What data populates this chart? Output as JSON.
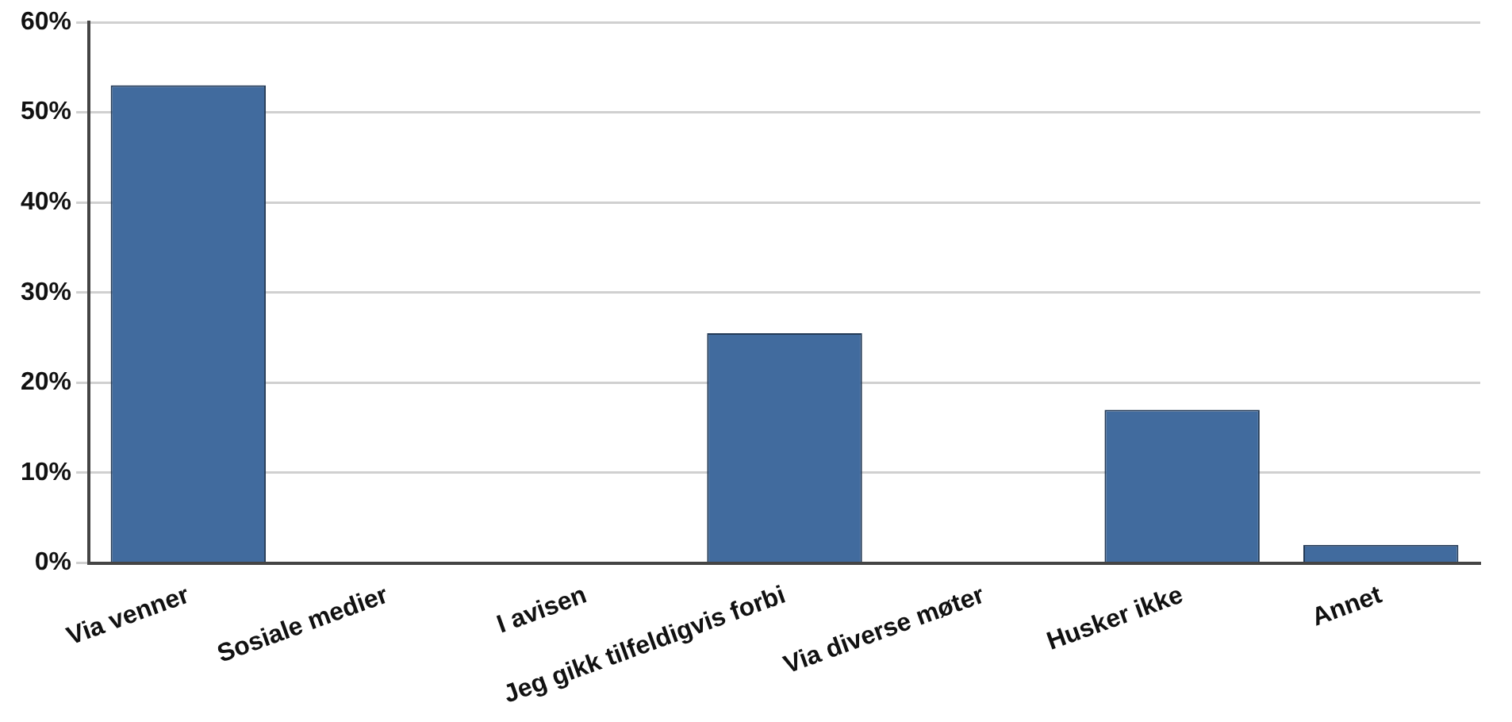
{
  "chart_data": {
    "type": "bar",
    "categories": [
      "Via venner",
      "Sosiale medier",
      "I avisen",
      "Jeg gikk tilfeldigvis forbi",
      "Via diverse møter",
      "Husker ikke",
      "Annet"
    ],
    "values": [
      53,
      0,
      0,
      25.5,
      0,
      17,
      2
    ],
    "color": "#416b9e",
    "ylim": [
      0,
      60
    ],
    "yticks": [
      {
        "value": 0,
        "label": "0%"
      },
      {
        "value": 10,
        "label": "10%"
      },
      {
        "value": 20,
        "label": "20%"
      },
      {
        "value": 30,
        "label": "30%"
      },
      {
        "value": 40,
        "label": "40%"
      },
      {
        "value": 50,
        "label": "50%"
      },
      {
        "value": 60,
        "label": "60%"
      }
    ],
    "grid": "y",
    "legend": false
  }
}
